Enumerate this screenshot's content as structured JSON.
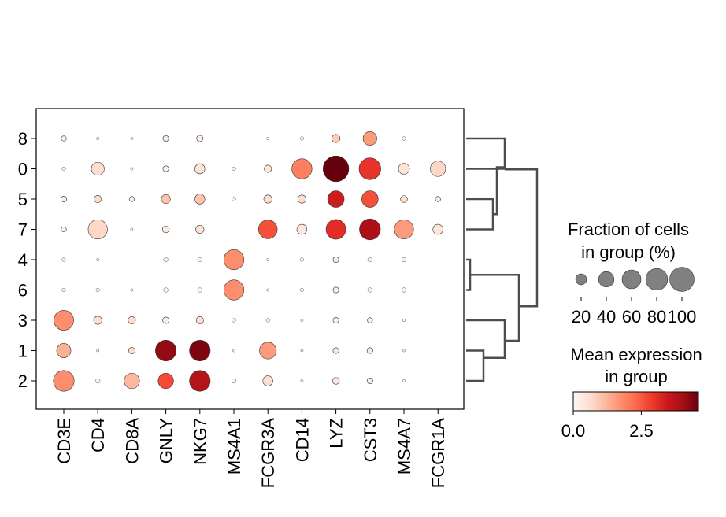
{
  "chart_data": {
    "type": "scatter",
    "subtype": "dotplot",
    "genes": [
      "CD3E",
      "CD4",
      "CD8A",
      "GNLY",
      "NKG7",
      "MS4A1",
      "FCGR3A",
      "CD14",
      "LYZ",
      "CST3",
      "MS4A7",
      "FCGR1A"
    ],
    "groups": [
      "8",
      "0",
      "5",
      "7",
      "4",
      "6",
      "3",
      "1",
      "2"
    ],
    "fraction": [
      [
        4,
        1,
        1,
        5,
        6,
        0,
        1,
        2,
        10,
        28,
        2,
        0
      ],
      [
        2,
        25,
        1,
        5,
        15,
        2,
        8,
        60,
        98,
        70,
        18,
        35
      ],
      [
        5,
        8,
        4,
        12,
        15,
        2,
        10,
        10,
        40,
        40,
        7,
        4
      ],
      [
        4,
        55,
        1,
        7,
        10,
        0,
        52,
        15,
        58,
        65,
        55,
        15
      ],
      [
        2,
        1,
        0,
        3,
        3,
        60,
        1,
        2,
        5,
        3,
        3,
        0
      ],
      [
        2,
        2,
        1,
        3,
        3,
        60,
        1,
        2,
        5,
        3,
        3,
        0
      ],
      [
        58,
        10,
        8,
        6,
        8,
        2,
        2,
        1,
        5,
        4,
        1,
        0
      ],
      [
        30,
        1,
        6,
        64,
        64,
        1,
        42,
        1,
        5,
        5,
        1,
        0
      ],
      [
        64,
        3,
        35,
        35,
        64,
        3,
        15,
        1,
        7,
        5,
        1,
        0
      ]
    ],
    "expression": [
      [
        0.1,
        0.1,
        0.1,
        0.2,
        0.2,
        0,
        0.1,
        0.1,
        0.9,
        1.6,
        0.1,
        0
      ],
      [
        0.1,
        0.6,
        0.1,
        0.2,
        0.5,
        0.1,
        0.5,
        2.0,
        4.8,
        3.0,
        0.5,
        0.7
      ],
      [
        0.2,
        0.6,
        0.2,
        1.0,
        1.0,
        0.1,
        0.6,
        0.6,
        3.4,
        2.6,
        0.6,
        0.3
      ],
      [
        0.1,
        0.7,
        0.1,
        0.3,
        0.5,
        0,
        2.6,
        0.4,
        3.1,
        3.9,
        1.6,
        0.4
      ],
      [
        0.1,
        0.1,
        0,
        0.1,
        0.1,
        1.8,
        0.1,
        0.1,
        0.3,
        0.2,
        0.2,
        0
      ],
      [
        0.1,
        0.1,
        0.1,
        0.1,
        0.1,
        1.8,
        0.1,
        0.1,
        0.3,
        0.2,
        0.2,
        0
      ],
      [
        1.8,
        0.6,
        0.6,
        0.2,
        0.6,
        0.1,
        0.2,
        0.1,
        0.3,
        0.3,
        0.1,
        0
      ],
      [
        1.3,
        0.1,
        0.6,
        4.2,
        4.4,
        0.1,
        1.6,
        0.1,
        0.3,
        0.3,
        0.1,
        0
      ],
      [
        1.8,
        0.2,
        1.2,
        2.7,
        3.8,
        0.1,
        0.6,
        0.1,
        0.4,
        0.3,
        0.1,
        0
      ]
    ],
    "size_legend": {
      "title_line1": "Fraction of cells",
      "title_line2": "in group (%)",
      "values": [
        20,
        40,
        60,
        80,
        100
      ],
      "labels": [
        "20",
        "40",
        "60",
        "80",
        "100"
      ]
    },
    "color_legend": {
      "title_line1": "Mean expression",
      "title_line2": "in group",
      "range": [
        0,
        4.6
      ],
      "tick_labels": [
        "0.0",
        "2.5"
      ],
      "tick_values": [
        0,
        2.5
      ],
      "colormap": "Reds"
    },
    "dendrogram": true,
    "grid": false
  }
}
